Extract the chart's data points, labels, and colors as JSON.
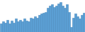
{
  "values": [
    18,
    22,
    20,
    25,
    18,
    24,
    20,
    28,
    22,
    25,
    22,
    28,
    24,
    22,
    30,
    28,
    32,
    30,
    35,
    38,
    40,
    42,
    50,
    55,
    58,
    52,
    55,
    60,
    62,
    55,
    50,
    58,
    42,
    10,
    30,
    38,
    32,
    28,
    35,
    40
  ],
  "fill_color": "#5b9fd4",
  "line_color": "#4a8bbf",
  "background_color": "#ffffff",
  "ylim_min": 0
}
